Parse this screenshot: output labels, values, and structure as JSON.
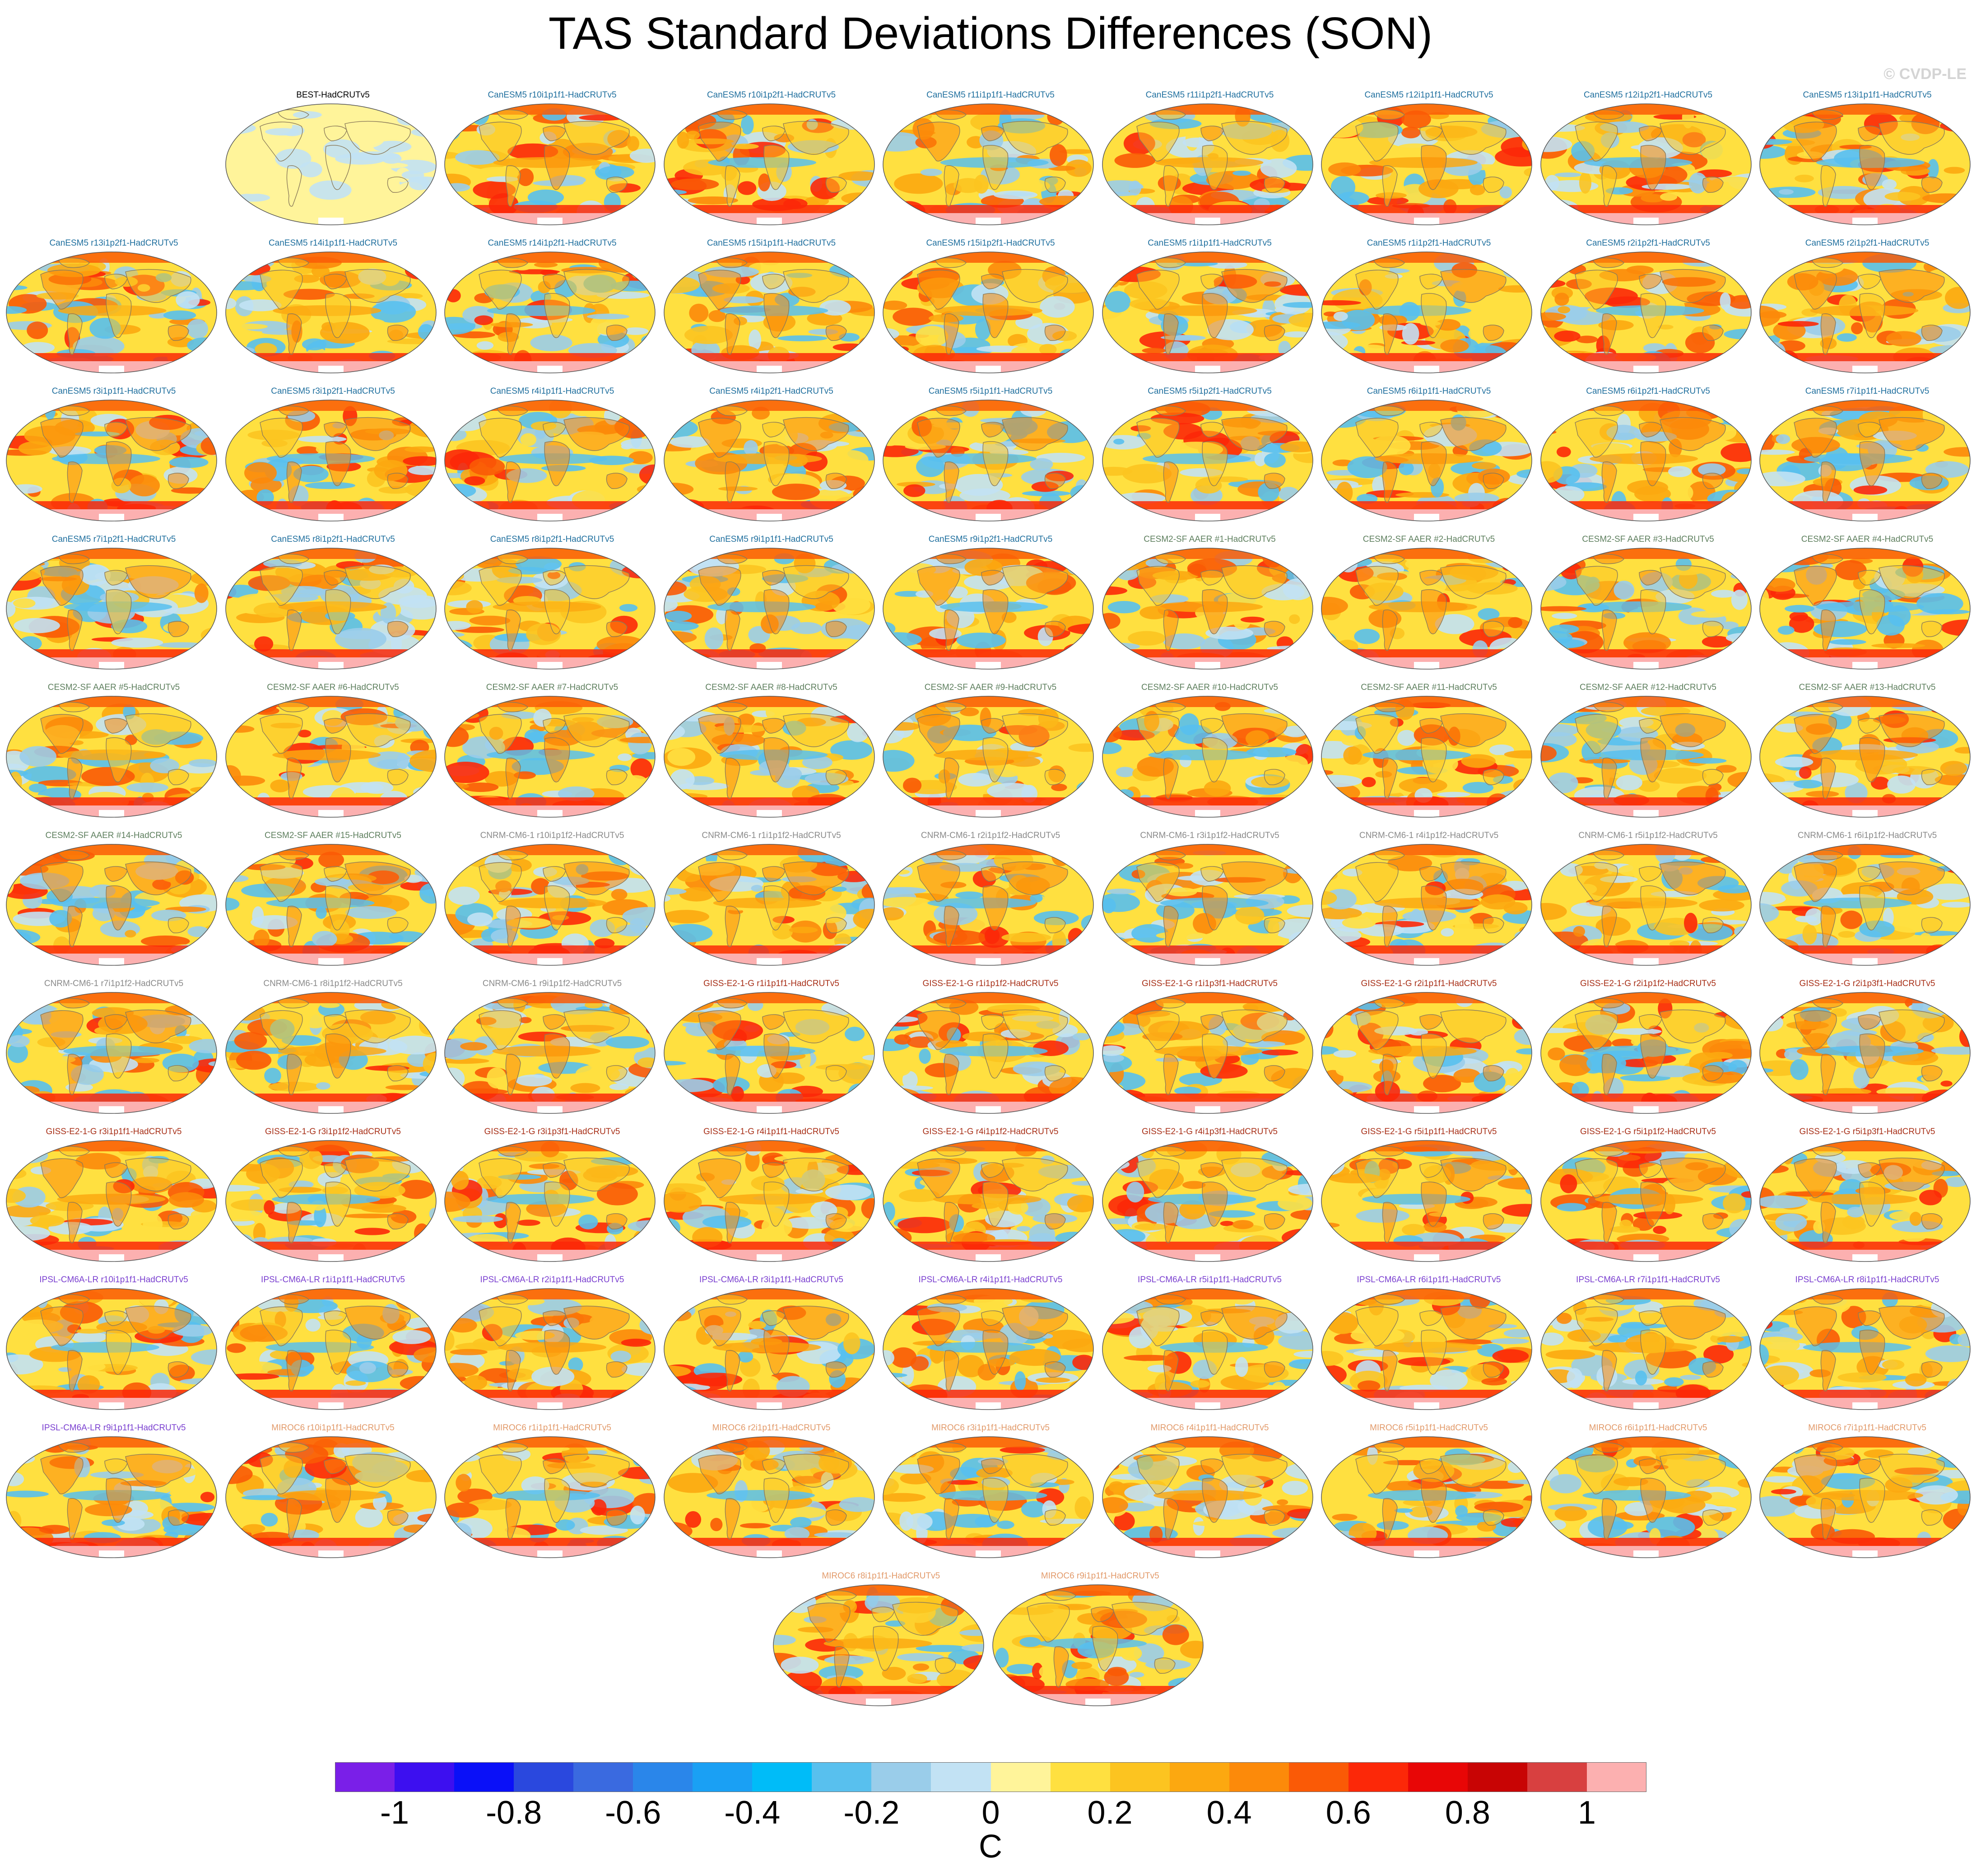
{
  "title": "TAS Standard Deviations Differences (SON)",
  "copyright": "© CVDP-LE",
  "colors": {
    "BEST": "#000000",
    "CanESM5": "#1f6f9e",
    "CESM2-SF": "#5e7f5e",
    "CNRM-CM6-1": "#8a8a8a",
    "GISS-E2-1-G": "#a83018",
    "IPSL-CM6A-LR": "#7a3fd0",
    "MIROC6": "#e29a6a"
  },
  "panels": [
    {
      "label": "BEST-HadCRUTv5",
      "group": "BEST"
    },
    {
      "label": "CanESM5 r10i1p1f1-HadCRUTv5",
      "group": "CanESM5"
    },
    {
      "label": "CanESM5 r10i1p2f1-HadCRUTv5",
      "group": "CanESM5"
    },
    {
      "label": "CanESM5 r11i1p1f1-HadCRUTv5",
      "group": "CanESM5"
    },
    {
      "label": "CanESM5 r11i1p2f1-HadCRUTv5",
      "group": "CanESM5"
    },
    {
      "label": "CanESM5 r12i1p1f1-HadCRUTv5",
      "group": "CanESM5"
    },
    {
      "label": "CanESM5 r12i1p2f1-HadCRUTv5",
      "group": "CanESM5"
    },
    {
      "label": "CanESM5 r13i1p1f1-HadCRUTv5",
      "group": "CanESM5"
    },
    {
      "label": "CanESM5 r13i1p2f1-HadCRUTv5",
      "group": "CanESM5"
    },
    {
      "label": "CanESM5 r14i1p1f1-HadCRUTv5",
      "group": "CanESM5"
    },
    {
      "label": "CanESM5 r14i1p2f1-HadCRUTv5",
      "group": "CanESM5"
    },
    {
      "label": "CanESM5 r15i1p1f1-HadCRUTv5",
      "group": "CanESM5"
    },
    {
      "label": "CanESM5 r15i1p2f1-HadCRUTv5",
      "group": "CanESM5"
    },
    {
      "label": "CanESM5 r1i1p1f1-HadCRUTv5",
      "group": "CanESM5"
    },
    {
      "label": "CanESM5 r1i1p2f1-HadCRUTv5",
      "group": "CanESM5"
    },
    {
      "label": "CanESM5 r2i1p2f1-HadCRUTv5",
      "group": "CanESM5"
    },
    {
      "label": "CanESM5 r2i1p2f1-HadCRUTv5",
      "group": "CanESM5"
    },
    {
      "label": "CanESM5 r3i1p1f1-HadCRUTv5",
      "group": "CanESM5"
    },
    {
      "label": "CanESM5 r3i1p2f1-HadCRUTv5",
      "group": "CanESM5"
    },
    {
      "label": "CanESM5 r4i1p1f1-HadCRUTv5",
      "group": "CanESM5"
    },
    {
      "label": "CanESM5 r4i1p2f1-HadCRUTv5",
      "group": "CanESM5"
    },
    {
      "label": "CanESM5 r5i1p1f1-HadCRUTv5",
      "group": "CanESM5"
    },
    {
      "label": "CanESM5 r5i1p2f1-HadCRUTv5",
      "group": "CanESM5"
    },
    {
      "label": "CanESM5 r6i1p1f1-HadCRUTv5",
      "group": "CanESM5"
    },
    {
      "label": "CanESM5 r6i1p2f1-HadCRUTv5",
      "group": "CanESM5"
    },
    {
      "label": "CanESM5 r7i1p1f1-HadCRUTv5",
      "group": "CanESM5"
    },
    {
      "label": "CanESM5 r7i1p2f1-HadCRUTv5",
      "group": "CanESM5"
    },
    {
      "label": "CanESM5 r8i1p2f1-HadCRUTv5",
      "group": "CanESM5"
    },
    {
      "label": "CanESM5 r8i1p2f1-HadCRUTv5",
      "group": "CanESM5"
    },
    {
      "label": "CanESM5 r9i1p1f1-HadCRUTv5",
      "group": "CanESM5"
    },
    {
      "label": "CanESM5 r9i1p2f1-HadCRUTv5",
      "group": "CanESM5"
    },
    {
      "label": "CESM2-SF AAER #1-HadCRUTv5",
      "group": "CESM2-SF"
    },
    {
      "label": "CESM2-SF AAER #2-HadCRUTv5",
      "group": "CESM2-SF"
    },
    {
      "label": "CESM2-SF AAER #3-HadCRUTv5",
      "group": "CESM2-SF"
    },
    {
      "label": "CESM2-SF AAER #4-HadCRUTv5",
      "group": "CESM2-SF"
    },
    {
      "label": "CESM2-SF AAER #5-HadCRUTv5",
      "group": "CESM2-SF"
    },
    {
      "label": "CESM2-SF AAER #6-HadCRUTv5",
      "group": "CESM2-SF"
    },
    {
      "label": "CESM2-SF AAER #7-HadCRUTv5",
      "group": "CESM2-SF"
    },
    {
      "label": "CESM2-SF AAER #8-HadCRUTv5",
      "group": "CESM2-SF"
    },
    {
      "label": "CESM2-SF AAER #9-HadCRUTv5",
      "group": "CESM2-SF"
    },
    {
      "label": "CESM2-SF AAER #10-HadCRUTv5",
      "group": "CESM2-SF"
    },
    {
      "label": "CESM2-SF AAER #11-HadCRUTv5",
      "group": "CESM2-SF"
    },
    {
      "label": "CESM2-SF AAER #12-HadCRUTv5",
      "group": "CESM2-SF"
    },
    {
      "label": "CESM2-SF AAER #13-HadCRUTv5",
      "group": "CESM2-SF"
    },
    {
      "label": "CESM2-SF AAER #14-HadCRUTv5",
      "group": "CESM2-SF"
    },
    {
      "label": "CESM2-SF AAER #15-HadCRUTv5",
      "group": "CESM2-SF"
    },
    {
      "label": "CNRM-CM6-1 r10i1p1f2-HadCRUTv5",
      "group": "CNRM-CM6-1"
    },
    {
      "label": "CNRM-CM6-1 r1i1p1f2-HadCRUTv5",
      "group": "CNRM-CM6-1"
    },
    {
      "label": "CNRM-CM6-1 r2i1p1f2-HadCRUTv5",
      "group": "CNRM-CM6-1"
    },
    {
      "label": "CNRM-CM6-1 r3i1p1f2-HadCRUTv5",
      "group": "CNRM-CM6-1"
    },
    {
      "label": "CNRM-CM6-1 r4i1p1f2-HadCRUTv5",
      "group": "CNRM-CM6-1"
    },
    {
      "label": "CNRM-CM6-1 r5i1p1f2-HadCRUTv5",
      "group": "CNRM-CM6-1"
    },
    {
      "label": "CNRM-CM6-1 r6i1p1f2-HadCRUTv5",
      "group": "CNRM-CM6-1"
    },
    {
      "label": "CNRM-CM6-1 r7i1p1f2-HadCRUTv5",
      "group": "CNRM-CM6-1"
    },
    {
      "label": "CNRM-CM6-1 r8i1p1f2-HadCRUTv5",
      "group": "CNRM-CM6-1"
    },
    {
      "label": "CNRM-CM6-1 r9i1p1f2-HadCRUTv5",
      "group": "CNRM-CM6-1"
    },
    {
      "label": "GISS-E2-1-G r1i1p1f1-HadCRUTv5",
      "group": "GISS-E2-1-G"
    },
    {
      "label": "GISS-E2-1-G r1i1p1f2-HadCRUTv5",
      "group": "GISS-E2-1-G"
    },
    {
      "label": "GISS-E2-1-G r1i1p3f1-HadCRUTv5",
      "group": "GISS-E2-1-G"
    },
    {
      "label": "GISS-E2-1-G r2i1p1f1-HadCRUTv5",
      "group": "GISS-E2-1-G"
    },
    {
      "label": "GISS-E2-1-G r2i1p1f2-HadCRUTv5",
      "group": "GISS-E2-1-G"
    },
    {
      "label": "GISS-E2-1-G r2i1p3f1-HadCRUTv5",
      "group": "GISS-E2-1-G"
    },
    {
      "label": "GISS-E2-1-G r3i1p1f1-HadCRUTv5",
      "group": "GISS-E2-1-G"
    },
    {
      "label": "GISS-E2-1-G r3i1p1f2-HadCRUTv5",
      "group": "GISS-E2-1-G"
    },
    {
      "label": "GISS-E2-1-G r3i1p3f1-HadCRUTv5",
      "group": "GISS-E2-1-G"
    },
    {
      "label": "GISS-E2-1-G r4i1p1f1-HadCRUTv5",
      "group": "GISS-E2-1-G"
    },
    {
      "label": "GISS-E2-1-G r4i1p1f2-HadCRUTv5",
      "group": "GISS-E2-1-G"
    },
    {
      "label": "GISS-E2-1-G r4i1p3f1-HadCRUTv5",
      "group": "GISS-E2-1-G"
    },
    {
      "label": "GISS-E2-1-G r5i1p1f1-HadCRUTv5",
      "group": "GISS-E2-1-G"
    },
    {
      "label": "GISS-E2-1-G r5i1p1f2-HadCRUTv5",
      "group": "GISS-E2-1-G"
    },
    {
      "label": "GISS-E2-1-G r5i1p3f1-HadCRUTv5",
      "group": "GISS-E2-1-G"
    },
    {
      "label": "IPSL-CM6A-LR r10i1p1f1-HadCRUTv5",
      "group": "IPSL-CM6A-LR"
    },
    {
      "label": "IPSL-CM6A-LR r1i1p1f1-HadCRUTv5",
      "group": "IPSL-CM6A-LR"
    },
    {
      "label": "IPSL-CM6A-LR r2i1p1f1-HadCRUTv5",
      "group": "IPSL-CM6A-LR"
    },
    {
      "label": "IPSL-CM6A-LR r3i1p1f1-HadCRUTv5",
      "group": "IPSL-CM6A-LR"
    },
    {
      "label": "IPSL-CM6A-LR r4i1p1f1-HadCRUTv5",
      "group": "IPSL-CM6A-LR"
    },
    {
      "label": "IPSL-CM6A-LR r5i1p1f1-HadCRUTv5",
      "group": "IPSL-CM6A-LR"
    },
    {
      "label": "IPSL-CM6A-LR r6i1p1f1-HadCRUTv5",
      "group": "IPSL-CM6A-LR"
    },
    {
      "label": "IPSL-CM6A-LR r7i1p1f1-HadCRUTv5",
      "group": "IPSL-CM6A-LR"
    },
    {
      "label": "IPSL-CM6A-LR r8i1p1f1-HadCRUTv5",
      "group": "IPSL-CM6A-LR"
    },
    {
      "label": "IPSL-CM6A-LR r9i1p1f1-HadCRUTv5",
      "group": "IPSL-CM6A-LR"
    },
    {
      "label": "MIROC6 r10i1p1f1-HadCRUTv5",
      "group": "MIROC6"
    },
    {
      "label": "MIROC6 r1i1p1f1-HadCRUTv5",
      "group": "MIROC6"
    },
    {
      "label": "MIROC6 r2i1p1f1-HadCRUTv5",
      "group": "MIROC6"
    },
    {
      "label": "MIROC6 r3i1p1f1-HadCRUTv5",
      "group": "MIROC6"
    },
    {
      "label": "MIROC6 r4i1p1f1-HadCRUTv5",
      "group": "MIROC6"
    },
    {
      "label": "MIROC6 r5i1p1f1-HadCRUTv5",
      "group": "MIROC6"
    },
    {
      "label": "MIROC6 r6i1p1f1-HadCRUTv5",
      "group": "MIROC6"
    },
    {
      "label": "MIROC6 r7i1p1f1-HadCRUTv5",
      "group": "MIROC6"
    },
    {
      "label": "MIROC6 r8i1p1f1-HadCRUTv5",
      "group": "MIROC6"
    },
    {
      "label": "MIROC6 r9i1p1f1-HadCRUTv5",
      "group": "MIROC6"
    }
  ],
  "colorbar": {
    "unit": "C",
    "tick_labels": [
      "-1",
      "-0.8",
      "-0.6",
      "-0.4",
      "-0.2",
      "0",
      "0.2",
      "0.4",
      "0.6",
      "0.8",
      "1"
    ],
    "tick_values": [
      -1,
      -0.8,
      -0.6,
      -0.4,
      -0.2,
      0,
      0.2,
      0.4,
      0.6,
      0.8,
      1
    ],
    "range": [
      -1.1,
      1.1
    ],
    "colors": [
      "#7a1fe8",
      "#3d0ff0",
      "#0a10f8",
      "#2a48de",
      "#3a6ae0",
      "#2a86ea",
      "#1aa0f4",
      "#00bcf8",
      "#58c0ee",
      "#9acdea",
      "#c2e2f4",
      "#fff49a",
      "#ffe040",
      "#fcc420",
      "#fca810",
      "#fc8a0a",
      "#fa5a06",
      "#fc2808",
      "#e80606",
      "#c80404",
      "#d84040",
      "#fcb0b0"
    ]
  }
}
